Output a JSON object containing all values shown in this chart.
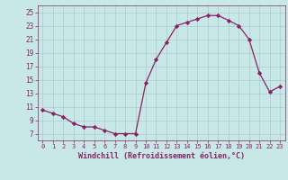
{
  "x": [
    0,
    1,
    2,
    3,
    4,
    5,
    6,
    7,
    8,
    9,
    10,
    11,
    12,
    13,
    14,
    15,
    16,
    17,
    18,
    19,
    20,
    21,
    22,
    23
  ],
  "y": [
    10.5,
    10.0,
    9.5,
    8.5,
    8.0,
    8.0,
    7.5,
    7.0,
    7.0,
    7.0,
    14.5,
    18.0,
    20.5,
    23.0,
    23.5,
    24.0,
    24.5,
    24.5,
    23.8,
    23.0,
    21.0,
    16.0,
    13.2,
    14.0
  ],
  "line_color": "#882266",
  "marker": "D",
  "marker_size": 2.2,
  "bg_color": "#c8e8e8",
  "grid_color": "#b0d0d0",
  "xlabel": "Windchill (Refroidissement éolien,°C)",
  "xlabel_color": "#882266",
  "tick_color": "#882266",
  "ylim": [
    6,
    26
  ],
  "xlim": [
    -0.5,
    23.5
  ],
  "yticks": [
    7,
    9,
    11,
    13,
    15,
    17,
    19,
    21,
    23,
    25
  ],
  "xticks": [
    0,
    1,
    2,
    3,
    4,
    5,
    6,
    7,
    8,
    9,
    10,
    11,
    12,
    13,
    14,
    15,
    16,
    17,
    18,
    19,
    20,
    21,
    22,
    23
  ]
}
